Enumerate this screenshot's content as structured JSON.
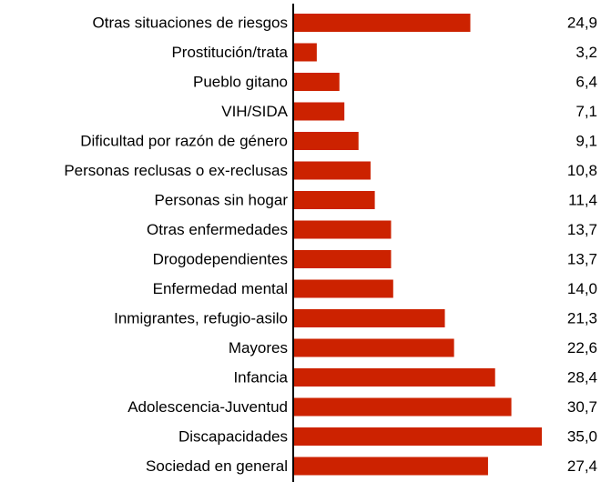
{
  "chart_data": {
    "type": "bar",
    "orientation": "horizontal",
    "categories": [
      "Otras situaciones de riesgos",
      "Prostitución/trata",
      "Pueblo gitano",
      "VIH/SIDA",
      "Dificultad por razón de género",
      "Personas reclusas o ex-reclusas",
      "Personas sin hogar",
      "Otras enfermedades",
      "Drogodependientes",
      "Enfermedad mental",
      "Inmigrantes, refugio-asilo",
      "Mayores",
      "Infancia",
      "Adolescencia-Juventud",
      "Discapacidades",
      "Sociedad en general"
    ],
    "values": [
      24.9,
      3.2,
      6.4,
      7.1,
      9.1,
      10.8,
      11.4,
      13.7,
      13.7,
      14.0,
      21.3,
      22.6,
      28.4,
      30.7,
      35.0,
      27.4
    ],
    "value_labels": [
      "24,9",
      "3,2",
      "6,4",
      "7,1",
      "9,1",
      "10,8",
      "11,4",
      "13,7",
      "13,7",
      "14,0",
      "21,3",
      "22,6",
      "28,4",
      "30,7",
      "35,0",
      "27,4"
    ],
    "title": "",
    "xlabel": "",
    "ylabel": "",
    "xlim": [
      0,
      35
    ],
    "grid": false,
    "legend": "none",
    "bar_color": "#cc2200",
    "axis_color": "#000000"
  }
}
